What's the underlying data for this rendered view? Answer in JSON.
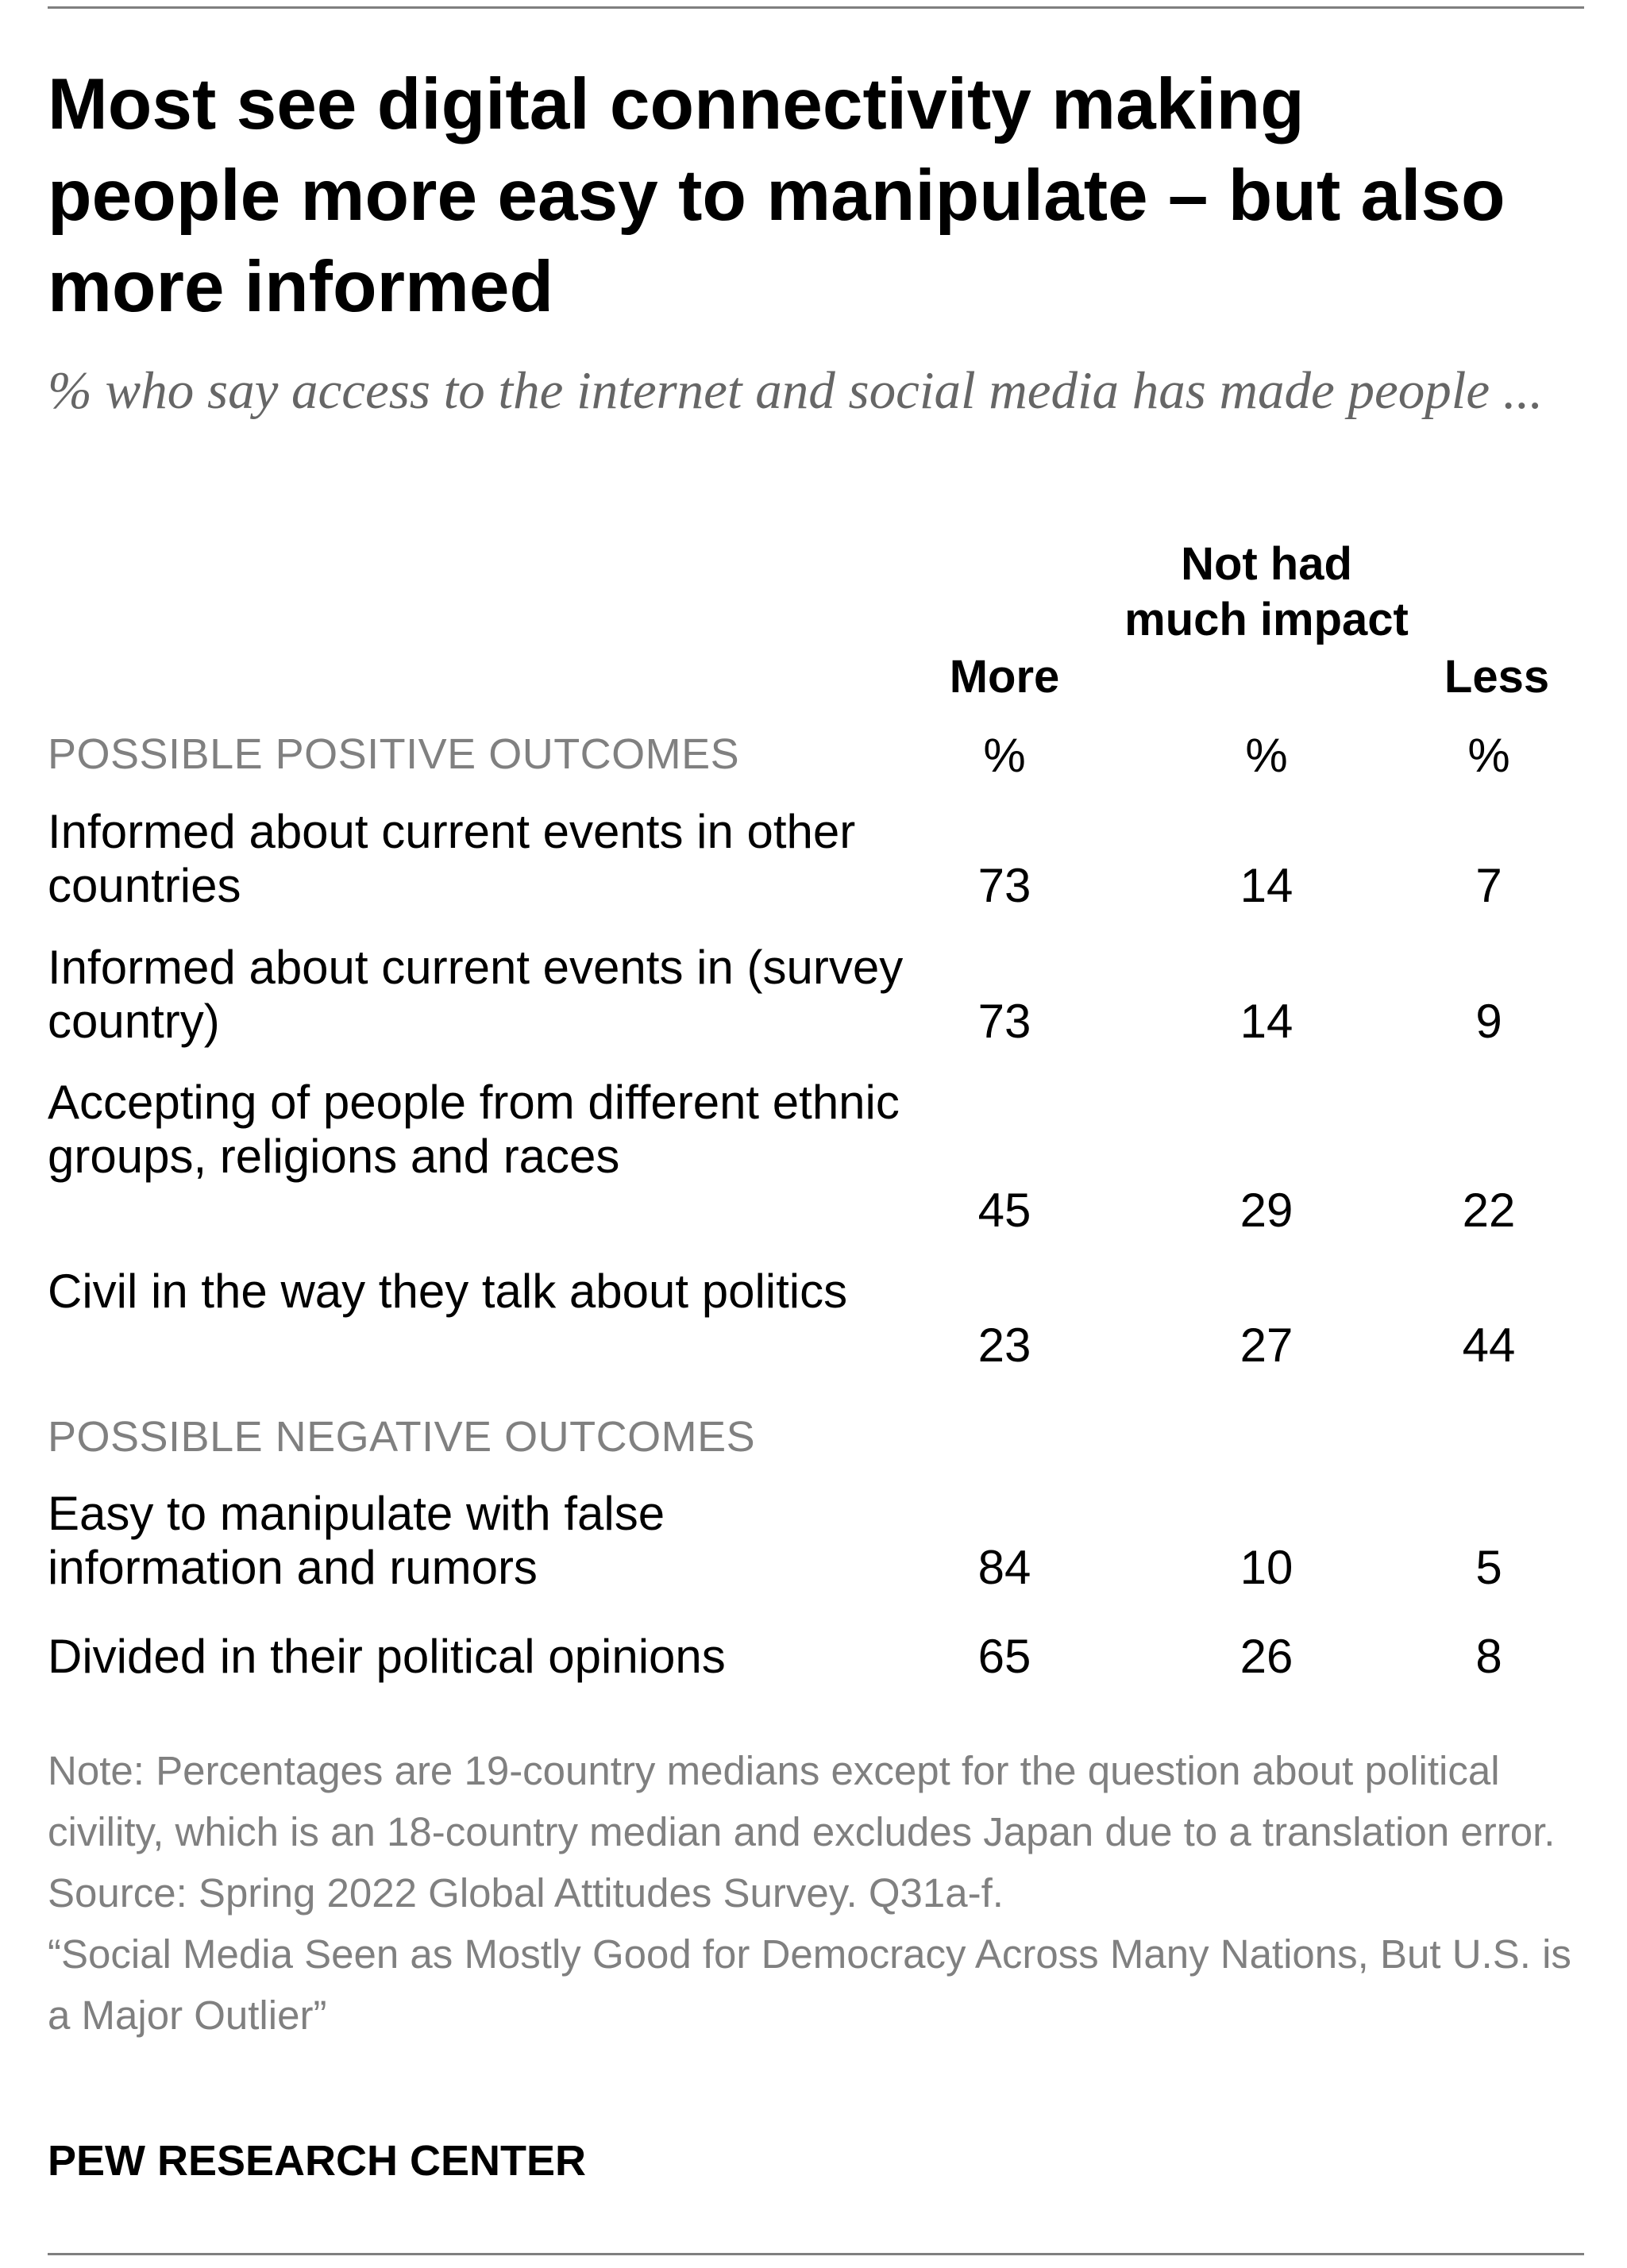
{
  "chart_data": {
    "type": "table",
    "title": "Most see digital connectivity making people more easy to manipulate – but also more informed",
    "subtitle": "% who say access to the internet and social media has made people ...",
    "columns": [
      "More",
      "Not had much impact",
      "Less"
    ],
    "column_units": [
      "%",
      "%",
      "%"
    ],
    "sections": [
      {
        "label": "POSSIBLE POSITIVE OUTCOMES",
        "rows": [
          {
            "label": "Informed about current events in other countries",
            "values": [
              73,
              14,
              7
            ]
          },
          {
            "label": "Informed about current events in (survey country)",
            "values": [
              73,
              14,
              9
            ]
          },
          {
            "label": "Accepting of people from different ethnic groups, religions and races",
            "values": [
              45,
              29,
              22
            ]
          },
          {
            "label": "Civil in the way they talk about politics",
            "values": [
              23,
              27,
              44
            ]
          }
        ]
      },
      {
        "label": "POSSIBLE NEGATIVE OUTCOMES",
        "rows": [
          {
            "label": "Easy to manipulate with false information and rumors",
            "values": [
              84,
              10,
              5
            ]
          },
          {
            "label": "Divided in their political opinions",
            "values": [
              65,
              26,
              8
            ]
          }
        ]
      }
    ],
    "notes": [
      "Note: Percentages are 19-country medians except for the question about political civility, which is an 18-country median and excludes Japan due to a translation error.",
      "Source: Spring 2022 Global Attitudes Survey. Q31a-f.",
      "“Social Media Seen as Mostly Good for Democracy Across Many Nations, But U.S. is a Major Outlier”"
    ],
    "source_org": "PEW RESEARCH CENTER"
  }
}
